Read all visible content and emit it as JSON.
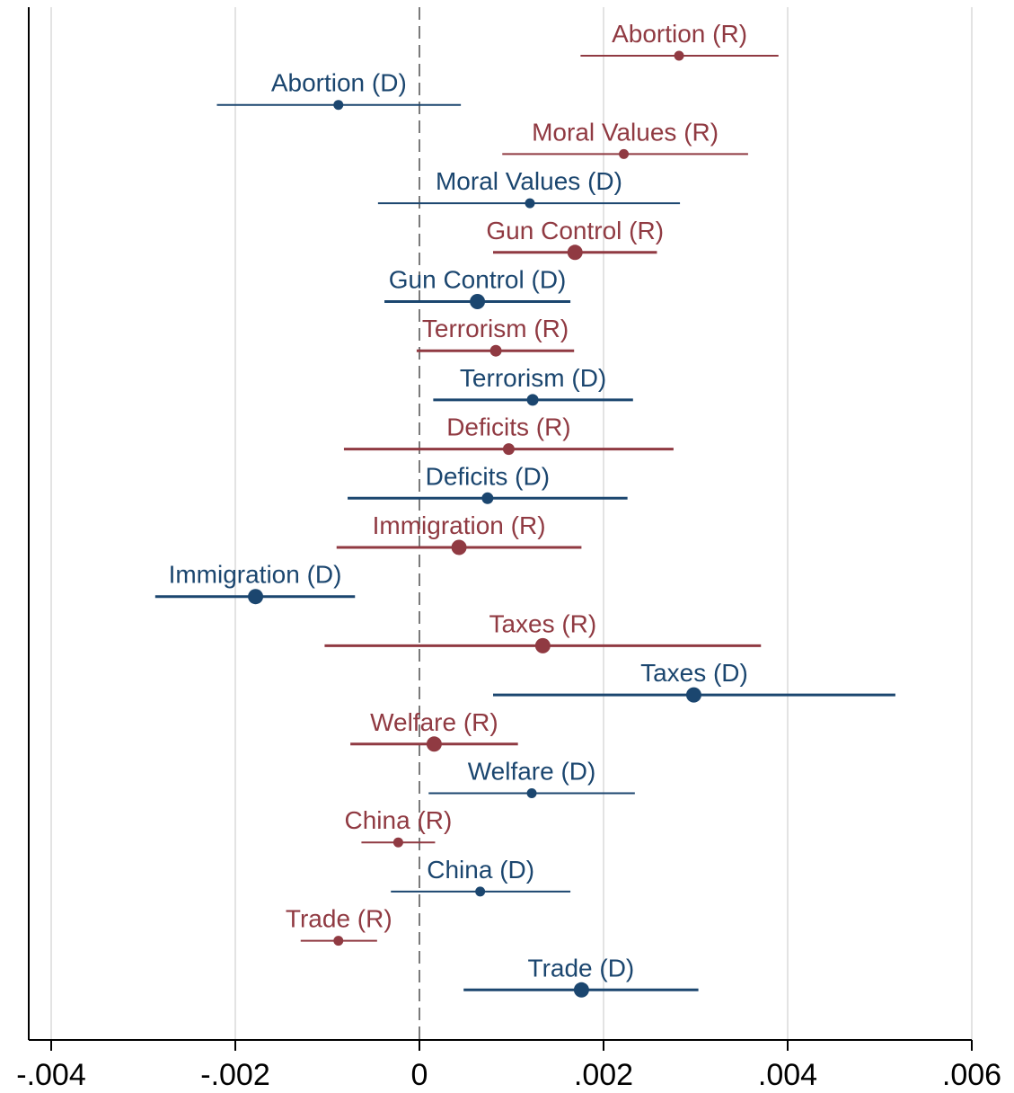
{
  "chart_data": {
    "type": "scatter",
    "title": "",
    "xlabel": "",
    "ylabel": "",
    "xlim": [
      -0.0042,
      0.0061
    ],
    "xticks": [
      -0.004,
      -0.002,
      0,
      0.002,
      0.004,
      0.006
    ],
    "xtick_labels": [
      "-.004",
      "-.002",
      "0",
      ".002",
      ".004",
      ".006"
    ],
    "grid": true,
    "reference_line": {
      "x": 0,
      "style": "dashed"
    },
    "colors": {
      "R": "#903a42",
      "D": "#1b466f",
      "grid": "#e3e3e3",
      "axis": "#000000"
    },
    "points": [
      {
        "label": "Abortion (R)",
        "party": "R",
        "estimate": 0.00282,
        "ci_low": 0.00175,
        "ci_high": 0.0039,
        "marker": "small"
      },
      {
        "label": "Abortion (D)",
        "party": "D",
        "estimate": -0.00088,
        "ci_low": -0.0022,
        "ci_high": 0.00045,
        "marker": "small"
      },
      {
        "label": "Moral Values (R)",
        "party": "R",
        "estimate": 0.00222,
        "ci_low": 0.0009,
        "ci_high": 0.00357,
        "marker": "small"
      },
      {
        "label": "Moral Values (D)",
        "party": "D",
        "estimate": 0.0012,
        "ci_low": -0.00045,
        "ci_high": 0.00283,
        "marker": "small"
      },
      {
        "label": "Gun Control (R)",
        "party": "R",
        "estimate": 0.00169,
        "ci_low": 0.0008,
        "ci_high": 0.00258,
        "marker": "large"
      },
      {
        "label": "Gun Control (D)",
        "party": "D",
        "estimate": 0.00063,
        "ci_low": -0.00038,
        "ci_high": 0.00164,
        "marker": "large"
      },
      {
        "label": "Terrorism (R)",
        "party": "R",
        "estimate": 0.00083,
        "ci_low": -3e-05,
        "ci_high": 0.00168,
        "marker": "medium"
      },
      {
        "label": "Terrorism (D)",
        "party": "D",
        "estimate": 0.00123,
        "ci_low": 0.00015,
        "ci_high": 0.00232,
        "marker": "medium"
      },
      {
        "label": "Deficits (R)",
        "party": "R",
        "estimate": 0.00097,
        "ci_low": -0.00082,
        "ci_high": 0.00276,
        "marker": "medium"
      },
      {
        "label": "Deficits (D)",
        "party": "D",
        "estimate": 0.00074,
        "ci_low": -0.00078,
        "ci_high": 0.00226,
        "marker": "medium"
      },
      {
        "label": "Immigration (R)",
        "party": "R",
        "estimate": 0.00043,
        "ci_low": -0.0009,
        "ci_high": 0.00176,
        "marker": "large"
      },
      {
        "label": "Immigration (D)",
        "party": "D",
        "estimate": -0.00178,
        "ci_low": -0.00287,
        "ci_high": -0.0007,
        "marker": "large"
      },
      {
        "label": "Taxes (R)",
        "party": "R",
        "estimate": 0.00134,
        "ci_low": -0.00103,
        "ci_high": 0.00371,
        "marker": "large"
      },
      {
        "label": "Taxes (D)",
        "party": "D",
        "estimate": 0.00298,
        "ci_low": 0.0008,
        "ci_high": 0.00517,
        "marker": "large"
      },
      {
        "label": "Welfare (R)",
        "party": "R",
        "estimate": 0.00016,
        "ci_low": -0.00075,
        "ci_high": 0.00107,
        "marker": "large"
      },
      {
        "label": "Welfare (D)",
        "party": "D",
        "estimate": 0.00122,
        "ci_low": 0.0001,
        "ci_high": 0.00234,
        "marker": "small"
      },
      {
        "label": "China (R)",
        "party": "R",
        "estimate": -0.00023,
        "ci_low": -0.00063,
        "ci_high": 0.00017,
        "marker": "small"
      },
      {
        "label": "China (D)",
        "party": "D",
        "estimate": 0.00066,
        "ci_low": -0.00031,
        "ci_high": 0.00164,
        "marker": "small"
      },
      {
        "label": "Trade (R)",
        "party": "R",
        "estimate": -0.00088,
        "ci_low": -0.00129,
        "ci_high": -0.00046,
        "marker": "small"
      },
      {
        "label": "Trade (D)",
        "party": "D",
        "estimate": 0.00176,
        "ci_low": 0.00048,
        "ci_high": 0.00303,
        "marker": "large"
      }
    ]
  }
}
